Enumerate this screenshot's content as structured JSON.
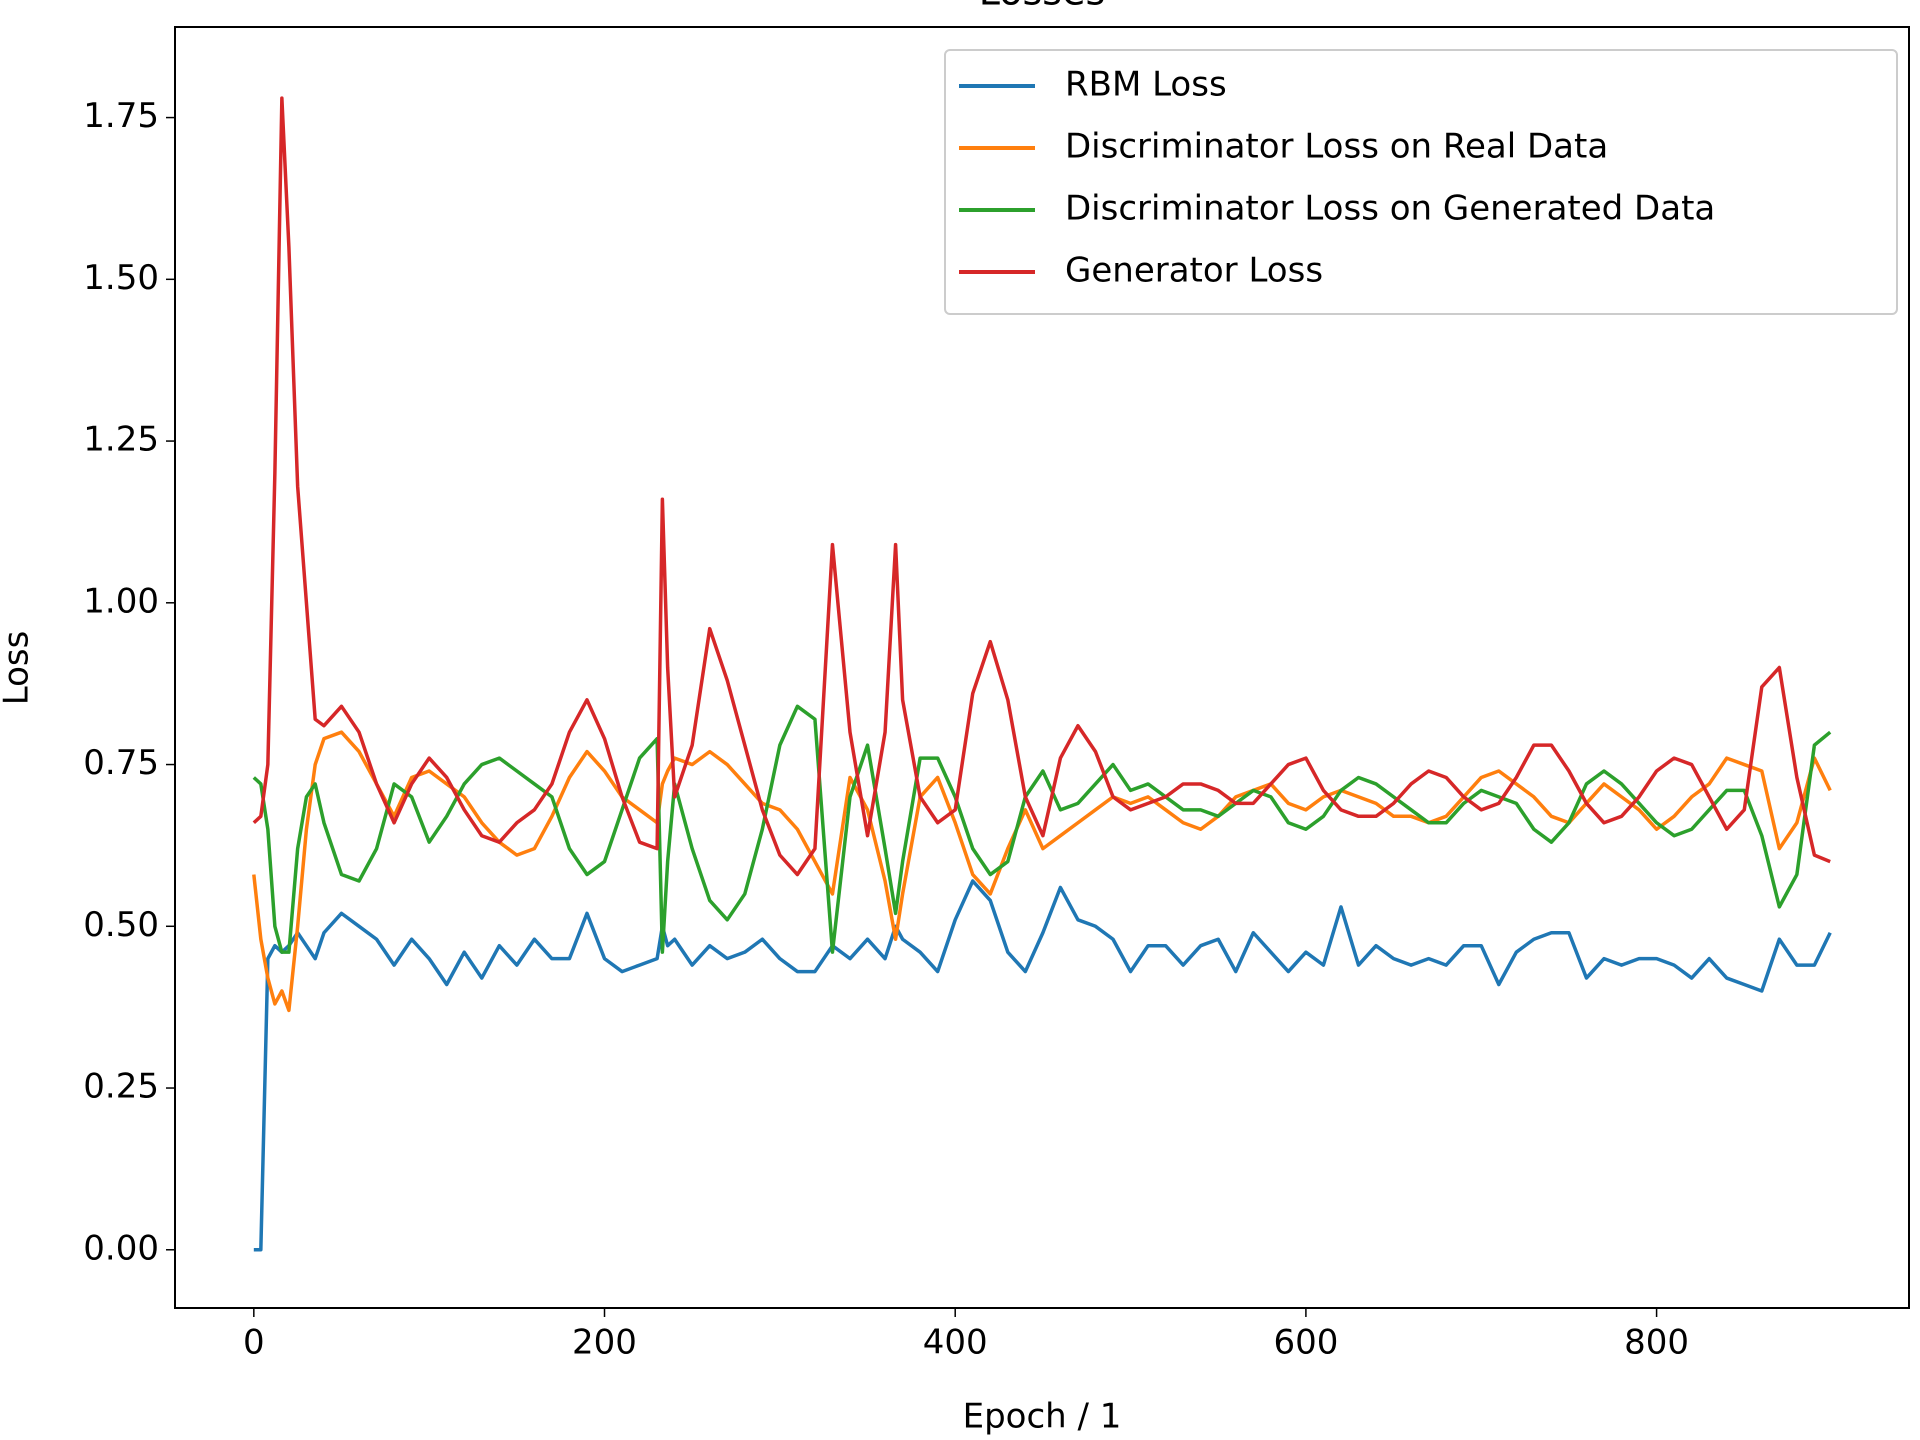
{
  "chart_data": {
    "type": "line",
    "title": "Losses",
    "xlabel": "Epoch / 1",
    "ylabel": "Loss",
    "x": [
      0,
      4,
      8,
      12,
      16,
      20,
      25,
      30,
      35,
      40,
      50,
      60,
      70,
      80,
      90,
      100,
      110,
      120,
      130,
      140,
      150,
      160,
      170,
      180,
      190,
      200,
      210,
      220,
      230,
      233,
      236,
      240,
      250,
      260,
      270,
      280,
      290,
      300,
      310,
      320,
      330,
      340,
      350,
      360,
      366,
      370,
      380,
      390,
      400,
      410,
      420,
      430,
      440,
      450,
      460,
      470,
      480,
      490,
      500,
      510,
      520,
      530,
      540,
      550,
      560,
      570,
      580,
      590,
      600,
      610,
      620,
      630,
      640,
      650,
      660,
      670,
      680,
      690,
      700,
      710,
      720,
      730,
      740,
      750,
      760,
      770,
      780,
      790,
      800,
      810,
      820,
      830,
      840,
      850,
      860,
      870,
      880,
      890,
      899
    ],
    "series": [
      {
        "name": "RBM Loss",
        "color": "#1f77b4",
        "values": [
          0,
          0,
          0.45,
          0.47,
          0.46,
          0.47,
          0.49,
          0.47,
          0.45,
          0.49,
          0.52,
          0.5,
          0.48,
          0.44,
          0.48,
          0.45,
          0.41,
          0.46,
          0.42,
          0.47,
          0.44,
          0.48,
          0.45,
          0.45,
          0.52,
          0.45,
          0.43,
          0.44,
          0.45,
          0.5,
          0.47,
          0.48,
          0.44,
          0.47,
          0.45,
          0.46,
          0.48,
          0.45,
          0.43,
          0.43,
          0.47,
          0.45,
          0.48,
          0.45,
          0.5,
          0.48,
          0.46,
          0.43,
          0.51,
          0.57,
          0.54,
          0.46,
          0.43,
          0.49,
          0.56,
          0.51,
          0.5,
          0.48,
          0.43,
          0.47,
          0.47,
          0.44,
          0.47,
          0.48,
          0.43,
          0.49,
          0.46,
          0.43,
          0.46,
          0.44,
          0.53,
          0.44,
          0.47,
          0.45,
          0.44,
          0.45,
          0.44,
          0.47,
          0.47,
          0.41,
          0.46,
          0.48,
          0.49,
          0.49,
          0.42,
          0.45,
          0.44,
          0.45,
          0.45,
          0.44,
          0.42,
          0.45,
          0.42,
          0.41,
          0.4,
          0.48,
          0.44,
          0.44,
          0.49
        ]
      },
      {
        "name": "Discriminator Loss on Real Data",
        "color": "#ff7f0e",
        "values": [
          0.58,
          0.48,
          0.42,
          0.38,
          0.4,
          0.37,
          0.5,
          0.65,
          0.75,
          0.79,
          0.8,
          0.77,
          0.72,
          0.67,
          0.73,
          0.74,
          0.72,
          0.7,
          0.66,
          0.63,
          0.61,
          0.62,
          0.67,
          0.73,
          0.77,
          0.74,
          0.7,
          0.68,
          0.66,
          0.72,
          0.74,
          0.76,
          0.75,
          0.77,
          0.75,
          0.72,
          0.69,
          0.68,
          0.65,
          0.6,
          0.55,
          0.73,
          0.68,
          0.57,
          0.48,
          0.55,
          0.7,
          0.73,
          0.66,
          0.58,
          0.55,
          0.62,
          0.68,
          0.62,
          0.64,
          0.66,
          0.68,
          0.7,
          0.69,
          0.7,
          0.68,
          0.66,
          0.65,
          0.67,
          0.7,
          0.71,
          0.72,
          0.69,
          0.68,
          0.7,
          0.71,
          0.7,
          0.69,
          0.67,
          0.67,
          0.66,
          0.67,
          0.7,
          0.73,
          0.74,
          0.72,
          0.7,
          0.67,
          0.66,
          0.69,
          0.72,
          0.7,
          0.68,
          0.65,
          0.67,
          0.7,
          0.72,
          0.76,
          0.75,
          0.74,
          0.62,
          0.66,
          0.76,
          0.71
        ]
      },
      {
        "name": "Discriminator Loss on Generated Data",
        "color": "#2ca02c",
        "values": [
          0.73,
          0.72,
          0.65,
          0.5,
          0.46,
          0.46,
          0.62,
          0.7,
          0.72,
          0.66,
          0.58,
          0.57,
          0.62,
          0.72,
          0.7,
          0.63,
          0.67,
          0.72,
          0.75,
          0.76,
          0.74,
          0.72,
          0.7,
          0.62,
          0.58,
          0.6,
          0.68,
          0.76,
          0.79,
          0.46,
          0.6,
          0.72,
          0.62,
          0.54,
          0.51,
          0.55,
          0.65,
          0.78,
          0.84,
          0.82,
          0.46,
          0.7,
          0.78,
          0.62,
          0.52,
          0.6,
          0.76,
          0.76,
          0.7,
          0.62,
          0.58,
          0.6,
          0.7,
          0.74,
          0.68,
          0.69,
          0.72,
          0.75,
          0.71,
          0.72,
          0.7,
          0.68,
          0.68,
          0.67,
          0.69,
          0.71,
          0.7,
          0.66,
          0.65,
          0.67,
          0.71,
          0.73,
          0.72,
          0.7,
          0.68,
          0.66,
          0.66,
          0.69,
          0.71,
          0.7,
          0.69,
          0.65,
          0.63,
          0.66,
          0.72,
          0.74,
          0.72,
          0.69,
          0.66,
          0.64,
          0.65,
          0.68,
          0.71,
          0.71,
          0.64,
          0.53,
          0.58,
          0.78,
          0.8
        ]
      },
      {
        "name": "Generator Loss",
        "color": "#d62728",
        "values": [
          0.66,
          0.67,
          0.75,
          1.2,
          1.78,
          1.55,
          1.18,
          1.0,
          0.82,
          0.81,
          0.84,
          0.8,
          0.72,
          0.66,
          0.72,
          0.76,
          0.73,
          0.68,
          0.64,
          0.63,
          0.66,
          0.68,
          0.72,
          0.8,
          0.85,
          0.79,
          0.7,
          0.63,
          0.62,
          1.16,
          0.9,
          0.7,
          0.78,
          0.96,
          0.88,
          0.78,
          0.68,
          0.61,
          0.58,
          0.62,
          1.09,
          0.8,
          0.64,
          0.8,
          1.09,
          0.85,
          0.7,
          0.66,
          0.68,
          0.86,
          0.94,
          0.85,
          0.7,
          0.64,
          0.76,
          0.81,
          0.77,
          0.7,
          0.68,
          0.69,
          0.7,
          0.72,
          0.72,
          0.71,
          0.69,
          0.69,
          0.72,
          0.75,
          0.76,
          0.71,
          0.68,
          0.67,
          0.67,
          0.69,
          0.72,
          0.74,
          0.73,
          0.7,
          0.68,
          0.69,
          0.73,
          0.78,
          0.78,
          0.74,
          0.69,
          0.66,
          0.67,
          0.7,
          0.74,
          0.76,
          0.75,
          0.7,
          0.65,
          0.68,
          0.87,
          0.9,
          0.73,
          0.61,
          0.6
        ]
      }
    ],
    "xlim": [
      -44.95,
      943.95
    ],
    "xticks": [
      0,
      200,
      400,
      600,
      800
    ],
    "ylim": [
      -0.09,
      1.89
    ],
    "yticks": [
      {
        "value": 0,
        "label": "0.00"
      },
      {
        "value": 0.25,
        "label": "0.25"
      },
      {
        "value": 0.5,
        "label": "0.50"
      },
      {
        "value": 0.75,
        "label": "0.75"
      },
      {
        "value": 1,
        "label": "1.00"
      },
      {
        "value": 1.25,
        "label": "1.25"
      },
      {
        "value": 1.5,
        "label": "1.50"
      },
      {
        "value": 1.75,
        "label": "1.75"
      }
    ],
    "legend": "upper right",
    "grid": false
  }
}
